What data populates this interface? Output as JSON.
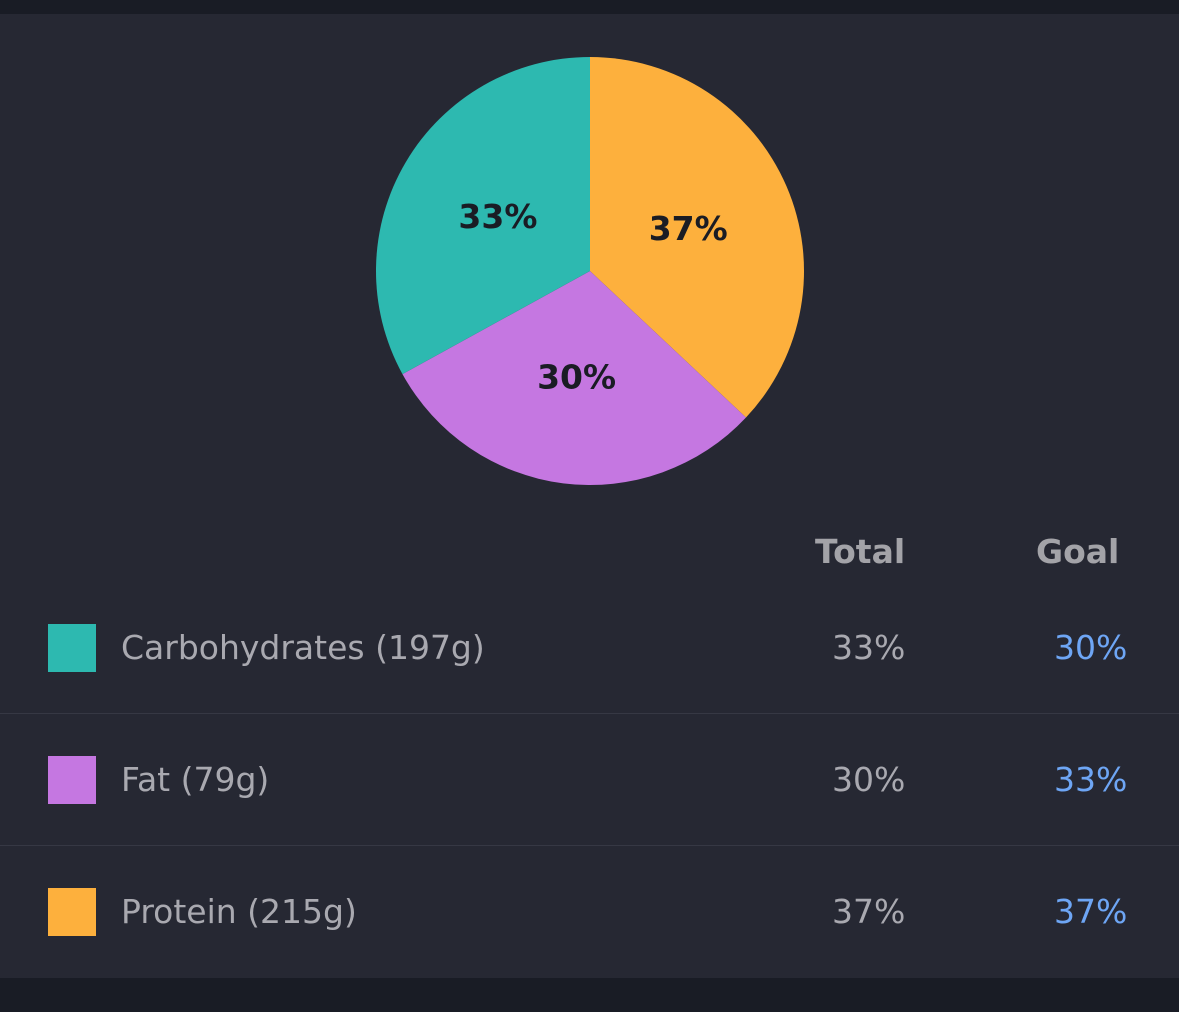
{
  "chart_data": {
    "type": "pie",
    "categories": [
      "Carbohydrates",
      "Fat",
      "Protein"
    ],
    "values": [
      33,
      30,
      37
    ],
    "labels": [
      "33%",
      "30%",
      "37%"
    ],
    "colors": [
      "#2db9b0",
      "#c577e1",
      "#fdb03d"
    ]
  },
  "table": {
    "headers": {
      "total": "Total",
      "goal": "Goal"
    },
    "rows": [
      {
        "label": "Carbohydrates (197g)",
        "total": "33%",
        "goal": "30%",
        "color": "#2db9b0"
      },
      {
        "label": "Fat (79g)",
        "total": "30%",
        "goal": "33%",
        "color": "#c577e1"
      },
      {
        "label": "Protein (215g)",
        "total": "37%",
        "goal": "37%",
        "color": "#fdb03d"
      }
    ]
  }
}
